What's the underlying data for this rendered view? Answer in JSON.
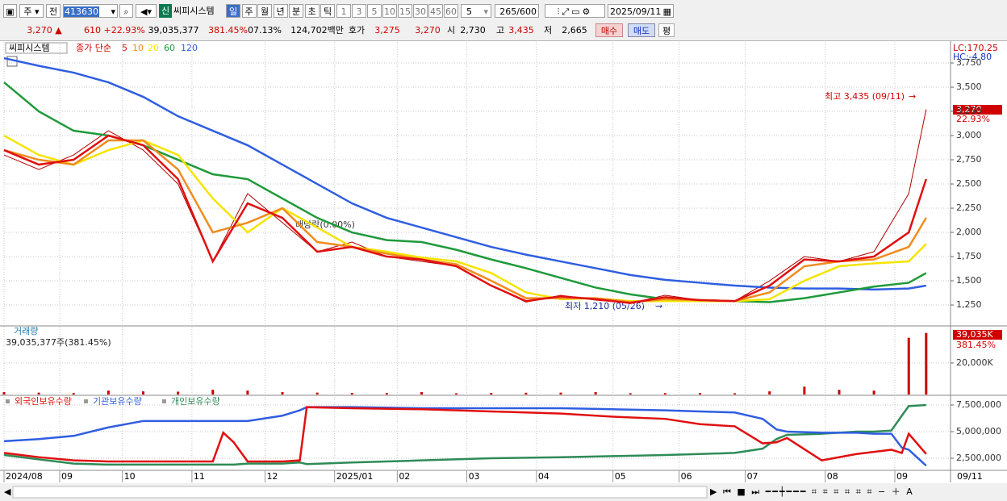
{
  "toolbar": {
    "period_type": "주",
    "prev_label": "전",
    "code": "413630",
    "new_badge": "신",
    "stock_name": "씨피시스템",
    "period_tabs": [
      "일",
      "주",
      "월",
      "년",
      "분",
      "초",
      "틱"
    ],
    "interval_buttons": [
      "1",
      "3",
      "5",
      "10",
      "15",
      "30",
      "45",
      "60"
    ],
    "interval_select": "5",
    "count": "265",
    "count_max": "/600",
    "date": "2025/09/11"
  },
  "quote_bar": {
    "price": "3,270",
    "arrow": "▲",
    "change": "610",
    "change_pct": "+22.93%",
    "volume": "39,035,377",
    "volume_ratio": "381.45%",
    "turnover": "07.13%",
    "amount": "124,702백만",
    "bid_label": "호가",
    "ask_price": "3,275",
    "bid_price": "3,270",
    "open_label": "시",
    "open": "2,730",
    "high_label": "고",
    "high": "3,435",
    "low_label": "저",
    "low": "2,665",
    "buy_button": "매수",
    "sell_button": "매도",
    "avg_button": "평"
  },
  "chart_data": [
    {
      "type": "line",
      "title": "씨피시스템",
      "legend_prefix": "종가 단순",
      "x": [
        0,
        10,
        20,
        30,
        40,
        50,
        60,
        70,
        80,
        90,
        100,
        110,
        120,
        130,
        140,
        150,
        160,
        170,
        180,
        190,
        200,
        210,
        220,
        230,
        240,
        250,
        260,
        265
      ],
      "xlim": [
        0,
        272
      ],
      "xticks": [
        {
          "value": 0,
          "label": "2024/08"
        },
        {
          "value": 16,
          "label": "09"
        },
        {
          "value": 34,
          "label": "10"
        },
        {
          "value": 54,
          "label": "11"
        },
        {
          "value": 75,
          "label": "12"
        },
        {
          "value": 95,
          "label": "2025/01"
        },
        {
          "value": 113,
          "label": "02"
        },
        {
          "value": 133,
          "label": "03"
        },
        {
          "value": 153,
          "label": "04"
        },
        {
          "value": 175,
          "label": "05"
        },
        {
          "value": 194,
          "label": "06"
        },
        {
          "value": 213,
          "label": "07"
        },
        {
          "value": 236,
          "label": "08"
        },
        {
          "value": 256,
          "label": "09"
        }
      ],
      "last_date": "09/11",
      "ylim": [
        1042,
        3967
      ],
      "yticks": [
        {
          "value": 1250,
          "label": "1,250"
        },
        {
          "value": 1500,
          "label": "1,500"
        },
        {
          "value": 1750,
          "label": "1,750"
        },
        {
          "value": 2000,
          "label": "2,000"
        },
        {
          "value": 2250,
          "label": "2,250"
        },
        {
          "value": 2500,
          "label": "2,500"
        },
        {
          "value": 2750,
          "label": "2,750"
        },
        {
          "value": 3000,
          "label": "3,000"
        },
        {
          "value": 3250,
          "label": "3,250"
        },
        {
          "value": 3500,
          "label": "3,500"
        },
        {
          "value": 3750,
          "label": "3,750"
        }
      ],
      "grid": true,
      "close_color": "#b00000",
      "close": [
        2800,
        2650,
        2800,
        3050,
        2850,
        2500,
        1700,
        2400,
        2100,
        1800,
        1900,
        1750,
        1700,
        1650,
        1450,
        1280,
        1350,
        1300,
        1270,
        1350,
        1300,
        1290,
        1500,
        1750,
        1700,
        1800,
        2400,
        3270
      ],
      "series": [
        {
          "name": "5",
          "color": "#e01010",
          "values": [
            2850,
            2700,
            2750,
            3000,
            2900,
            2550,
            1700,
            2300,
            2150,
            1800,
            1850,
            1750,
            1720,
            1650,
            1450,
            1290,
            1340,
            1310,
            1270,
            1330,
            1300,
            1290,
            1450,
            1720,
            1700,
            1750,
            2000,
            2550
          ]
        },
        {
          "name": "10",
          "color": "#f08c1e",
          "values": [
            2850,
            2750,
            2700,
            2950,
            2950,
            2650,
            2000,
            2100,
            2250,
            1900,
            1850,
            1780,
            1720,
            1670,
            1500,
            1320,
            1320,
            1320,
            1280,
            1310,
            1300,
            1290,
            1380,
            1650,
            1700,
            1720,
            1850,
            2150
          ]
        },
        {
          "name": "20",
          "color": "#f5e400",
          "values": [
            3000,
            2800,
            2700,
            2850,
            2950,
            2800,
            2350,
            2000,
            2250,
            2050,
            1850,
            1800,
            1740,
            1700,
            1580,
            1380,
            1310,
            1320,
            1290,
            1290,
            1290,
            1290,
            1310,
            1500,
            1650,
            1680,
            1700,
            1880
          ]
        },
        {
          "name": "60",
          "color": "#1f9a3a",
          "values": [
            3550,
            3250,
            3050,
            3000,
            2900,
            2750,
            2600,
            2550,
            2350,
            2150,
            2000,
            1920,
            1900,
            1820,
            1720,
            1630,
            1530,
            1430,
            1360,
            1310,
            1300,
            1290,
            1280,
            1320,
            1380,
            1440,
            1480,
            1580
          ]
        },
        {
          "name": "120",
          "color": "#2f5ee0",
          "values": [
            3800,
            3720,
            3650,
            3550,
            3400,
            3200,
            3050,
            2900,
            2700,
            2500,
            2300,
            2150,
            2050,
            1950,
            1850,
            1770,
            1700,
            1630,
            1560,
            1510,
            1480,
            1450,
            1430,
            1420,
            1420,
            1410,
            1420,
            1450
          ]
        }
      ],
      "high_label": "최고 3,435 (09/11)",
      "low_label": "최저 1,210 (05/26)",
      "event_label": "배당락(0.00%)",
      "lc_label": "LC:170.25",
      "hc_label": "HC:-4.80",
      "last_label": "3,270",
      "change_label": "22.93%"
    },
    {
      "type": "bar",
      "title": "거래량",
      "info": "39,035,377주(381.45%)",
      "color": "#cc0000",
      "x": [
        0,
        10,
        20,
        30,
        40,
        50,
        60,
        70,
        80,
        90,
        100,
        110,
        120,
        130,
        140,
        150,
        160,
        170,
        180,
        190,
        200,
        210,
        220,
        230,
        240,
        250,
        260,
        265
      ],
      "values": [
        1500,
        1200,
        900,
        2500,
        2000,
        1800,
        3000,
        2500,
        1500,
        1200,
        1000,
        900,
        1500,
        800,
        1000,
        1100,
        1200,
        1500,
        800,
        900,
        1000,
        800,
        2000,
        5000,
        3000,
        2500,
        36000,
        39035
      ],
      "ylim": [
        0,
        43000
      ],
      "yticks": [
        {
          "value": 20000,
          "label": "20,000K"
        }
      ],
      "last_label": "39,035K",
      "ratio_label": "381.45%"
    },
    {
      "type": "line",
      "x": [
        0,
        10,
        20,
        30,
        40,
        50,
        60,
        63,
        66,
        70,
        80,
        85,
        87,
        100,
        120,
        140,
        160,
        175,
        190,
        200,
        210,
        218,
        222,
        225,
        235,
        245,
        250,
        255,
        258,
        260,
        265
      ],
      "ylim": [
        1440000,
        8260000
      ],
      "yticks": [
        {
          "value": 2500000,
          "label": "2,500,000"
        },
        {
          "value": 5000000,
          "label": "5,000,000"
        },
        {
          "value": 7500000,
          "label": "7,500,000"
        }
      ],
      "series": [
        {
          "name": "외국인보유수량",
          "color": "#e01010",
          "values": [
            3000000,
            2600000,
            2300000,
            2200000,
            2200000,
            2200000,
            2200000,
            4900000,
            4000000,
            2200000,
            2200000,
            2300000,
            7300000,
            7200000,
            7100000,
            6900000,
            6700000,
            6400000,
            6200000,
            5700000,
            5500000,
            3900000,
            4000000,
            4400000,
            2300000,
            2900000,
            3100000,
            3300000,
            3000000,
            4800000,
            2900000
          ]
        },
        {
          "name": "기관보유수량",
          "color": "#2f5ee0",
          "values": [
            4100000,
            4300000,
            4600000,
            5400000,
            6000000,
            6000000,
            6000000,
            6000000,
            6000000,
            6000000,
            6500000,
            7000000,
            7300000,
            7300000,
            7200000,
            7200000,
            7200000,
            7100000,
            7000000,
            6900000,
            6800000,
            6200000,
            5200000,
            5000000,
            4900000,
            4900000,
            4800000,
            4800000,
            3500000,
            3300000,
            1800000
          ]
        },
        {
          "name": "개인보유수량",
          "color": "#2e8b57",
          "values": [
            2800000,
            2400000,
            2000000,
            1900000,
            1900000,
            1900000,
            1900000,
            1900000,
            1900000,
            2000000,
            2000000,
            2100000,
            1950000,
            2100000,
            2300000,
            2500000,
            2600000,
            2700000,
            2800000,
            2900000,
            3000000,
            3400000,
            4300000,
            4700000,
            4800000,
            5000000,
            5000000,
            5100000,
            6500000,
            7400000,
            7500000
          ]
        }
      ]
    }
  ]
}
